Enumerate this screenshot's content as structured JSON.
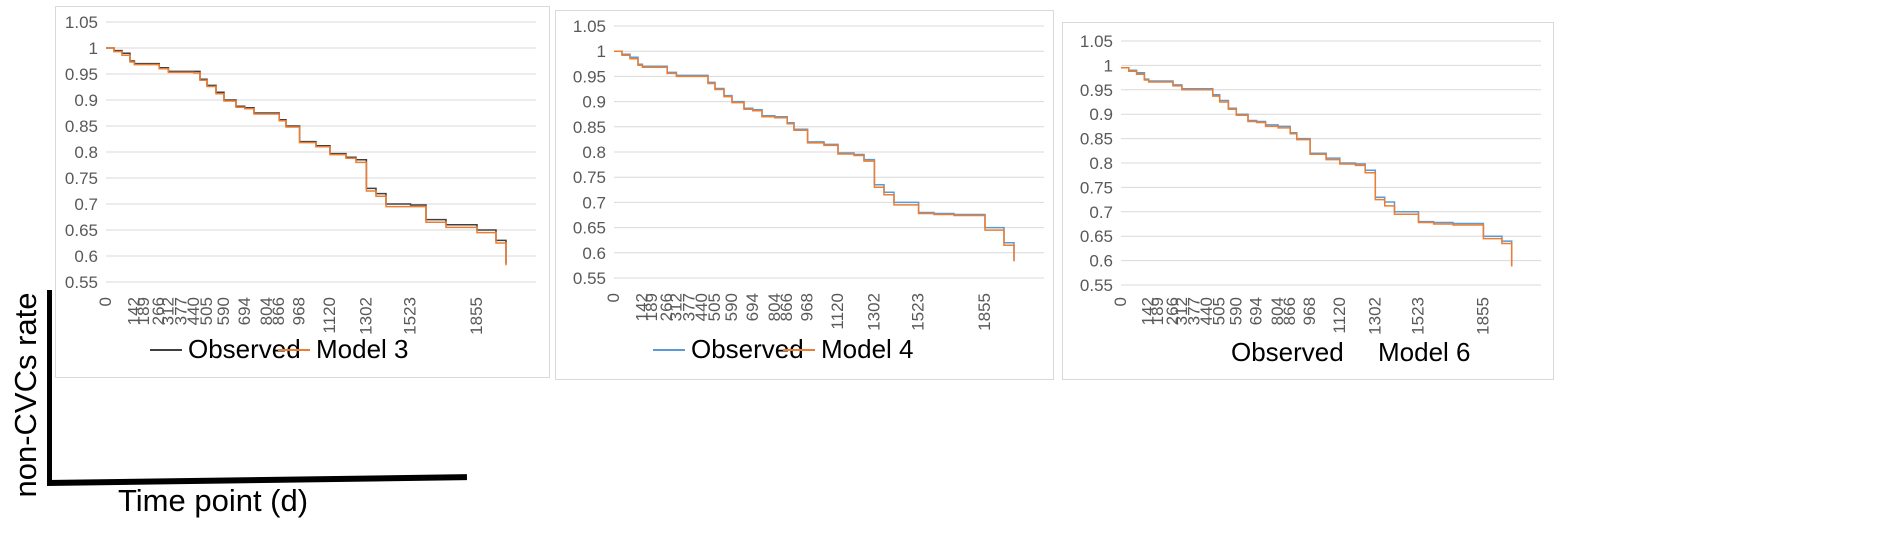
{
  "figure": {
    "ylabel": "non-CVCs rate",
    "xlabel": "Time point (d)"
  },
  "chart_data": [
    {
      "type": "line",
      "yticks": [
        "1.05",
        "1",
        "0.95",
        "0.9",
        "0.85",
        "0.8",
        "0.75",
        "0.7",
        "0.65",
        "0.6",
        "0.55"
      ],
      "ylim": [
        0.55,
        1.05
      ],
      "xticks": [
        "0",
        "142",
        "189",
        "266",
        "312",
        "377",
        "440",
        "505",
        "590",
        "694",
        "804",
        "866",
        "968",
        "1120",
        "1302",
        "1523",
        "1855"
      ],
      "xlim": [
        0,
        2150
      ],
      "grid": true,
      "legend_position": "bottom",
      "series": [
        {
          "name": "Observed",
          "color": "#404040",
          "points": [
            [
              0,
              1.0
            ],
            [
              40,
              0.995
            ],
            [
              80,
              0.99
            ],
            [
              120,
              0.975
            ],
            [
              142,
              0.97
            ],
            [
              189,
              0.97
            ],
            [
              266,
              0.962
            ],
            [
              312,
              0.955
            ],
            [
              377,
              0.955
            ],
            [
              440,
              0.955
            ],
            [
              470,
              0.94
            ],
            [
              505,
              0.928
            ],
            [
              550,
              0.915
            ],
            [
              590,
              0.9
            ],
            [
              650,
              0.888
            ],
            [
              694,
              0.885
            ],
            [
              740,
              0.875
            ],
            [
              804,
              0.875
            ],
            [
              866,
              0.862
            ],
            [
              900,
              0.85
            ],
            [
              968,
              0.82
            ],
            [
              1050,
              0.812
            ],
            [
              1120,
              0.797
            ],
            [
              1200,
              0.79
            ],
            [
              1250,
              0.785
            ],
            [
              1302,
              0.73
            ],
            [
              1350,
              0.72
            ],
            [
              1400,
              0.7
            ],
            [
              1523,
              0.698
            ],
            [
              1600,
              0.67
            ],
            [
              1700,
              0.66
            ],
            [
              1855,
              0.65
            ],
            [
              1950,
              0.63
            ],
            [
              2000,
              0.585
            ]
          ]
        },
        {
          "name": "Model 3",
          "color": "#ED7D31",
          "points": [
            [
              0,
              1.0
            ],
            [
              40,
              0.993
            ],
            [
              80,
              0.986
            ],
            [
              120,
              0.973
            ],
            [
              142,
              0.968
            ],
            [
              189,
              0.968
            ],
            [
              266,
              0.96
            ],
            [
              312,
              0.953
            ],
            [
              377,
              0.953
            ],
            [
              440,
              0.952
            ],
            [
              470,
              0.938
            ],
            [
              505,
              0.926
            ],
            [
              550,
              0.912
            ],
            [
              590,
              0.898
            ],
            [
              650,
              0.886
            ],
            [
              694,
              0.883
            ],
            [
              740,
              0.873
            ],
            [
              804,
              0.873
            ],
            [
              866,
              0.86
            ],
            [
              900,
              0.848
            ],
            [
              968,
              0.818
            ],
            [
              1050,
              0.81
            ],
            [
              1120,
              0.795
            ],
            [
              1200,
              0.788
            ],
            [
              1250,
              0.78
            ],
            [
              1302,
              0.725
            ],
            [
              1350,
              0.715
            ],
            [
              1400,
              0.695
            ],
            [
              1523,
              0.695
            ],
            [
              1600,
              0.665
            ],
            [
              1700,
              0.655
            ],
            [
              1855,
              0.645
            ],
            [
              1950,
              0.625
            ],
            [
              2000,
              0.582
            ]
          ]
        }
      ]
    },
    {
      "type": "line",
      "yticks": [
        "1.05",
        "1",
        "0.95",
        "0.9",
        "0.85",
        "0.8",
        "0.75",
        "0.7",
        "0.65",
        "0.6",
        "0.55"
      ],
      "ylim": [
        0.55,
        1.05
      ],
      "xticks": [
        "0",
        "142",
        "189",
        "266",
        "312",
        "377",
        "440",
        "505",
        "590",
        "694",
        "804",
        "866",
        "968",
        "1120",
        "1302",
        "1523",
        "1855"
      ],
      "xlim": [
        0,
        2150
      ],
      "grid": true,
      "legend_position": "bottom",
      "series": [
        {
          "name": "Observed",
          "color": "#5B9BD5",
          "points": [
            [
              0,
              1.0
            ],
            [
              40,
              0.994
            ],
            [
              80,
              0.988
            ],
            [
              120,
              0.974
            ],
            [
              142,
              0.97
            ],
            [
              189,
              0.97
            ],
            [
              266,
              0.958
            ],
            [
              312,
              0.952
            ],
            [
              377,
              0.952
            ],
            [
              440,
              0.952
            ],
            [
              470,
              0.938
            ],
            [
              505,
              0.926
            ],
            [
              550,
              0.912
            ],
            [
              590,
              0.9
            ],
            [
              650,
              0.887
            ],
            [
              694,
              0.884
            ],
            [
              740,
              0.872
            ],
            [
              804,
              0.87
            ],
            [
              866,
              0.858
            ],
            [
              900,
              0.845
            ],
            [
              968,
              0.82
            ],
            [
              1050,
              0.815
            ],
            [
              1120,
              0.798
            ],
            [
              1200,
              0.795
            ],
            [
              1250,
              0.785
            ],
            [
              1302,
              0.735
            ],
            [
              1350,
              0.72
            ],
            [
              1400,
              0.7
            ],
            [
              1523,
              0.68
            ],
            [
              1600,
              0.678
            ],
            [
              1700,
              0.676
            ],
            [
              1855,
              0.65
            ],
            [
              1950,
              0.62
            ],
            [
              2000,
              0.585
            ]
          ]
        },
        {
          "name": "Model 4",
          "color": "#ED7D31",
          "points": [
            [
              0,
              1.0
            ],
            [
              40,
              0.992
            ],
            [
              80,
              0.985
            ],
            [
              120,
              0.972
            ],
            [
              142,
              0.968
            ],
            [
              189,
              0.968
            ],
            [
              266,
              0.956
            ],
            [
              312,
              0.95
            ],
            [
              377,
              0.95
            ],
            [
              440,
              0.95
            ],
            [
              470,
              0.936
            ],
            [
              505,
              0.924
            ],
            [
              550,
              0.91
            ],
            [
              590,
              0.898
            ],
            [
              650,
              0.885
            ],
            [
              694,
              0.882
            ],
            [
              740,
              0.87
            ],
            [
              804,
              0.868
            ],
            [
              866,
              0.856
            ],
            [
              900,
              0.843
            ],
            [
              968,
              0.818
            ],
            [
              1050,
              0.813
            ],
            [
              1120,
              0.796
            ],
            [
              1200,
              0.793
            ],
            [
              1250,
              0.782
            ],
            [
              1302,
              0.73
            ],
            [
              1350,
              0.715
            ],
            [
              1400,
              0.695
            ],
            [
              1523,
              0.678
            ],
            [
              1600,
              0.676
            ],
            [
              1700,
              0.674
            ],
            [
              1855,
              0.645
            ],
            [
              1950,
              0.615
            ],
            [
              2000,
              0.583
            ]
          ]
        }
      ]
    },
    {
      "type": "line",
      "yticks": [
        "1.05",
        "1",
        "0.95",
        "0.9",
        "0.85",
        "0.8",
        "0.75",
        "0.7",
        "0.65",
        "0.6",
        "0.55"
      ],
      "ylim": [
        0.55,
        1.05
      ],
      "xticks": [
        "0",
        "142",
        "189",
        "266",
        "312",
        "377",
        "440",
        "505",
        "590",
        "694",
        "804",
        "866",
        "968",
        "1120",
        "1302",
        "1523",
        "1855"
      ],
      "xlim": [
        0,
        2150
      ],
      "grid": true,
      "legend_position": "bottom",
      "series": [
        {
          "name": "Observed",
          "color": "#5B9BD5",
          "points": [
            [
              0,
              0.995
            ],
            [
              40,
              0.99
            ],
            [
              80,
              0.985
            ],
            [
              120,
              0.972
            ],
            [
              142,
              0.968
            ],
            [
              189,
              0.968
            ],
            [
              266,
              0.96
            ],
            [
              312,
              0.952
            ],
            [
              377,
              0.952
            ],
            [
              440,
              0.952
            ],
            [
              470,
              0.94
            ],
            [
              505,
              0.928
            ],
            [
              550,
              0.912
            ],
            [
              590,
              0.9
            ],
            [
              650,
              0.887
            ],
            [
              694,
              0.885
            ],
            [
              740,
              0.878
            ],
            [
              804,
              0.875
            ],
            [
              866,
              0.862
            ],
            [
              900,
              0.85
            ],
            [
              968,
              0.82
            ],
            [
              1050,
              0.81
            ],
            [
              1120,
              0.8
            ],
            [
              1200,
              0.798
            ],
            [
              1250,
              0.785
            ],
            [
              1302,
              0.73
            ],
            [
              1350,
              0.72
            ],
            [
              1400,
              0.7
            ],
            [
              1523,
              0.68
            ],
            [
              1600,
              0.678
            ],
            [
              1700,
              0.676
            ],
            [
              1855,
              0.65
            ],
            [
              1950,
              0.64
            ],
            [
              2000,
              0.59
            ]
          ]
        },
        {
          "name": "Model 6",
          "color": "#ED7D31",
          "points": [
            [
              0,
              0.995
            ],
            [
              40,
              0.988
            ],
            [
              80,
              0.982
            ],
            [
              120,
              0.97
            ],
            [
              142,
              0.966
            ],
            [
              189,
              0.966
            ],
            [
              266,
              0.958
            ],
            [
              312,
              0.95
            ],
            [
              377,
              0.95
            ],
            [
              440,
              0.95
            ],
            [
              470,
              0.937
            ],
            [
              505,
              0.925
            ],
            [
              550,
              0.91
            ],
            [
              590,
              0.898
            ],
            [
              650,
              0.885
            ],
            [
              694,
              0.883
            ],
            [
              740,
              0.875
            ],
            [
              804,
              0.872
            ],
            [
              866,
              0.86
            ],
            [
              900,
              0.848
            ],
            [
              968,
              0.818
            ],
            [
              1050,
              0.807
            ],
            [
              1120,
              0.798
            ],
            [
              1200,
              0.795
            ],
            [
              1250,
              0.78
            ],
            [
              1302,
              0.725
            ],
            [
              1350,
              0.712
            ],
            [
              1400,
              0.695
            ],
            [
              1523,
              0.678
            ],
            [
              1600,
              0.675
            ],
            [
              1700,
              0.673
            ],
            [
              1855,
              0.645
            ],
            [
              1950,
              0.635
            ],
            [
              2000,
              0.588
            ]
          ]
        }
      ]
    }
  ]
}
